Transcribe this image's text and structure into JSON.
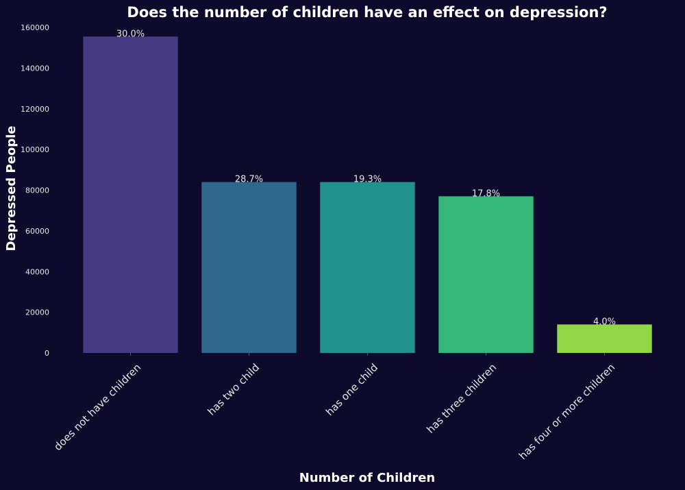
{
  "chart_data": {
    "type": "bar",
    "title": "Does the number of children have an effect on depression?",
    "xlabel": "Number of Children",
    "ylabel": "Depressed People",
    "categories": [
      "does not have children",
      "has two child",
      "has one child",
      "has three children",
      "has four or more children"
    ],
    "values": [
      155500,
      84000,
      84000,
      77000,
      14000
    ],
    "data_labels": [
      "30.0%",
      "28.7%",
      "19.3%",
      "17.8%",
      "4.0%"
    ],
    "colors": [
      "#463a84",
      "#30678d",
      "#21918c",
      "#35b779",
      "#8fd744"
    ],
    "ylim": [
      0,
      160000
    ],
    "yticks": [
      0,
      20000,
      40000,
      60000,
      80000,
      100000,
      120000,
      140000,
      160000
    ],
    "grid": false,
    "legend": "none"
  },
  "theme": {
    "background": "#0e0a2b",
    "text": "#ffffff",
    "tick_text": "#e6e6e6"
  }
}
